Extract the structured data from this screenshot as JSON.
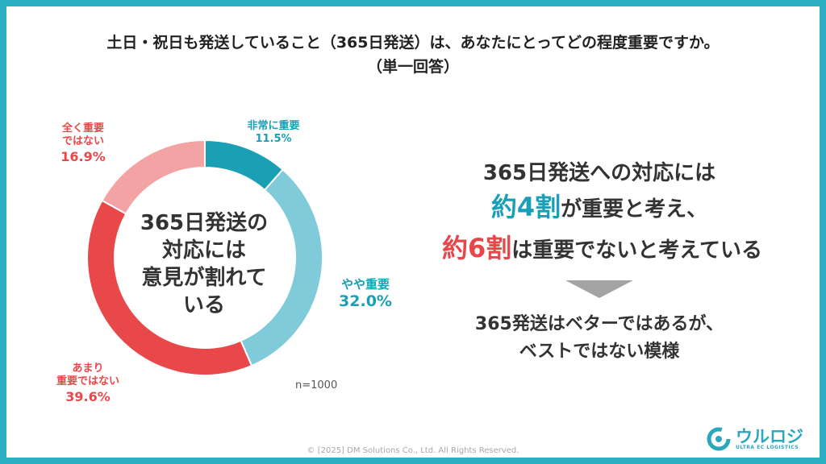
{
  "title": {
    "line1": "土日・祝日も発送していること（365日発送）は、あなたにとってどの程度重要ですか。",
    "line2": "（単一回答）"
  },
  "chart_data": {
    "type": "pie",
    "style": "donut",
    "sample_size_label": "n=1000",
    "center_label": [
      "365日発送の",
      "対応には",
      "意見が割れて",
      "いる"
    ],
    "slices": [
      {
        "name_lines": [
          "非常に重要"
        ],
        "value": 11.5,
        "value_label": "11.5%",
        "color": "#1a9fb5",
        "label_color": "#1a9fb5"
      },
      {
        "name_lines": [
          "やや重要"
        ],
        "value": 32.0,
        "value_label": "32.0%",
        "color": "#7fcbd9",
        "label_color": "#1a9fb5"
      },
      {
        "name_lines": [
          "あまり",
          "重要ではない"
        ],
        "value": 39.6,
        "value_label": "39.6%",
        "color": "#e8484a",
        "label_color": "#e8484a"
      },
      {
        "name_lines": [
          "全く重要",
          "ではない"
        ],
        "value": 16.9,
        "value_label": "16.9%",
        "color": "#f4a3a5",
        "label_color": "#e8484a"
      }
    ]
  },
  "summary": {
    "line1": "365日発送への対応には",
    "line2_highlight": "約4割",
    "line2_rest": "が重要と考え、",
    "line3_highlight": "約6割",
    "line3_rest": "は重要でないと考えている",
    "conclusion1": "365発送はベターではあるが、",
    "conclusion2": "ベストではない模様"
  },
  "footer": {
    "copyright": "© [2025] DM Solutions Co., Ltd. All Rights Reserved."
  },
  "logo": {
    "word": "ウルロジ",
    "sub": "ULTRA EC LOGISTICS"
  },
  "colors": {
    "frame": "#2bb0c3",
    "teal": "#1b9fb6",
    "red": "#e8474a",
    "arrow": "#a3a3a3"
  }
}
